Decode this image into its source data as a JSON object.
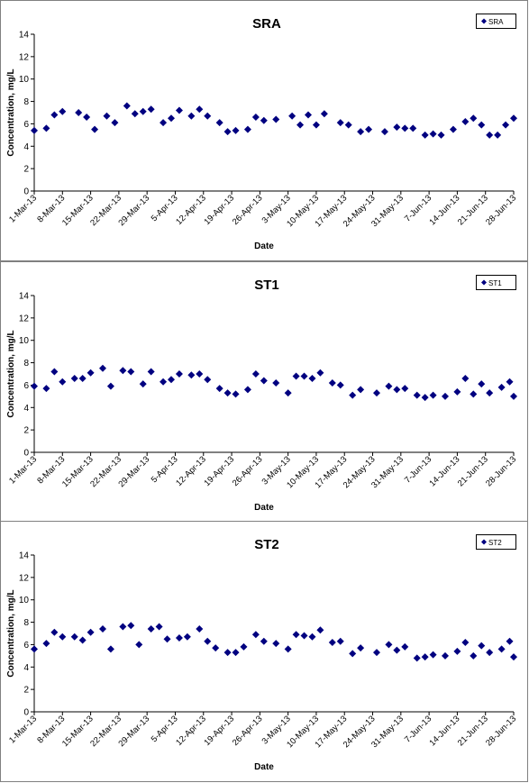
{
  "colors": {
    "marker": "#000080",
    "axis": "#000000",
    "frame": "#808080",
    "background": "#ffffff"
  },
  "chart_data": [
    {
      "type": "scatter",
      "title": "SRA",
      "xlabel": "Date",
      "ylabel": "Concentration, mg/L",
      "ylim": [
        0,
        14
      ],
      "yticks": [
        0,
        2,
        4,
        6,
        8,
        10,
        12,
        14
      ],
      "xlim": [
        "2013-03-01",
        "2013-06-28"
      ],
      "xticks": [
        "1-Mar-13",
        "8-Mar-13",
        "15-Mar-13",
        "22-Mar-13",
        "29-Mar-13",
        "5-Apr-13",
        "12-Apr-13",
        "19-Apr-13",
        "26-Apr-13",
        "3-May-13",
        "10-May-13",
        "17-May-13",
        "24-May-13",
        "31-May-13",
        "7-Jun-13",
        "14-Jun-13",
        "21-Jun-13",
        "28-Jun-13"
      ],
      "grid": false,
      "legend_position": "top-right",
      "series": [
        {
          "name": "SRA",
          "marker": "diamond",
          "x": [
            "2013-03-01",
            "2013-03-04",
            "2013-03-06",
            "2013-03-08",
            "2013-03-12",
            "2013-03-14",
            "2013-03-16",
            "2013-03-19",
            "2013-03-21",
            "2013-03-24",
            "2013-03-26",
            "2013-03-28",
            "2013-03-30",
            "2013-04-02",
            "2013-04-04",
            "2013-04-06",
            "2013-04-09",
            "2013-04-11",
            "2013-04-13",
            "2013-04-16",
            "2013-04-18",
            "2013-04-20",
            "2013-04-23",
            "2013-04-25",
            "2013-04-27",
            "2013-04-30",
            "2013-05-04",
            "2013-05-06",
            "2013-05-08",
            "2013-05-10",
            "2013-05-12",
            "2013-05-16",
            "2013-05-18",
            "2013-05-21",
            "2013-05-23",
            "2013-05-27",
            "2013-05-30",
            "2013-06-01",
            "2013-06-03",
            "2013-06-06",
            "2013-06-08",
            "2013-06-10",
            "2013-06-13",
            "2013-06-16",
            "2013-06-18",
            "2013-06-20",
            "2013-06-22",
            "2013-06-24",
            "2013-06-26",
            "2013-06-28"
          ],
          "y": [
            5.4,
            5.6,
            6.8,
            7.1,
            7.0,
            6.6,
            5.5,
            6.7,
            6.1,
            7.6,
            6.9,
            7.1,
            7.3,
            6.1,
            6.5,
            7.2,
            6.7,
            7.3,
            6.7,
            6.1,
            5.3,
            5.4,
            5.5,
            6.6,
            6.3,
            6.4,
            6.7,
            5.9,
            6.8,
            5.9,
            6.9,
            6.1,
            5.9,
            5.3,
            5.5,
            5.3,
            5.7,
            5.6,
            5.6,
            5.0,
            5.1,
            5.0,
            5.5,
            6.2,
            6.5,
            5.9,
            5.0,
            5.0,
            5.9,
            6.5
          ]
        }
      ]
    },
    {
      "type": "scatter",
      "title": "ST1",
      "xlabel": "Date",
      "ylabel": "Concentration, mg/L",
      "ylim": [
        0,
        14
      ],
      "yticks": [
        0,
        2,
        4,
        6,
        8,
        10,
        12,
        14
      ],
      "xlim": [
        "2013-03-01",
        "2013-06-28"
      ],
      "xticks": [
        "1-Mar-13",
        "8-Mar-13",
        "15-Mar-13",
        "22-Mar-13",
        "29-Mar-13",
        "5-Apr-13",
        "12-Apr-13",
        "19-Apr-13",
        "26-Apr-13",
        "3-May-13",
        "10-May-13",
        "17-May-13",
        "24-May-13",
        "31-May-13",
        "7-Jun-13",
        "14-Jun-13",
        "21-Jun-13",
        "28-Jun-13"
      ],
      "grid": false,
      "legend_position": "top-right",
      "series": [
        {
          "name": "ST1",
          "marker": "diamond",
          "x": [
            "2013-03-01",
            "2013-03-04",
            "2013-03-06",
            "2013-03-08",
            "2013-03-11",
            "2013-03-13",
            "2013-03-15",
            "2013-03-18",
            "2013-03-20",
            "2013-03-23",
            "2013-03-25",
            "2013-03-28",
            "2013-03-30",
            "2013-04-02",
            "2013-04-04",
            "2013-04-06",
            "2013-04-09",
            "2013-04-11",
            "2013-04-13",
            "2013-04-16",
            "2013-04-18",
            "2013-04-20",
            "2013-04-23",
            "2013-04-25",
            "2013-04-27",
            "2013-04-30",
            "2013-05-03",
            "2013-05-05",
            "2013-05-07",
            "2013-05-09",
            "2013-05-11",
            "2013-05-14",
            "2013-05-16",
            "2013-05-19",
            "2013-05-21",
            "2013-05-25",
            "2013-05-28",
            "2013-05-30",
            "2013-06-01",
            "2013-06-04",
            "2013-06-06",
            "2013-06-08",
            "2013-06-11",
            "2013-06-14",
            "2013-06-16",
            "2013-06-18",
            "2013-06-20",
            "2013-06-22",
            "2013-06-25",
            "2013-06-27",
            "2013-06-28"
          ],
          "y": [
            5.9,
            5.7,
            7.2,
            6.3,
            6.6,
            6.6,
            7.1,
            7.5,
            5.9,
            7.3,
            7.2,
            6.1,
            7.2,
            6.3,
            6.5,
            7.0,
            6.9,
            7.0,
            6.5,
            5.7,
            5.3,
            5.2,
            5.6,
            7.0,
            6.4,
            6.2,
            5.3,
            6.8,
            6.8,
            6.6,
            7.1,
            6.2,
            6.0,
            5.1,
            5.6,
            5.3,
            5.9,
            5.6,
            5.7,
            5.1,
            4.9,
            5.1,
            5.0,
            5.4,
            6.6,
            5.2,
            6.1,
            5.3,
            5.8,
            6.3,
            5.0
          ]
        }
      ]
    },
    {
      "type": "scatter",
      "title": "ST2",
      "xlabel": "Date",
      "ylabel": "Concentration, mg/L",
      "ylim": [
        0,
        14
      ],
      "yticks": [
        0,
        2,
        4,
        6,
        8,
        10,
        12,
        14
      ],
      "xlim": [
        "2013-03-01",
        "2013-06-28"
      ],
      "xticks": [
        "1-Mar-13",
        "8-Mar-13",
        "15-Mar-13",
        "22-Mar-13",
        "29-Mar-13",
        "5-Apr-13",
        "12-Apr-13",
        "19-Apr-13",
        "26-Apr-13",
        "3-May-13",
        "10-May-13",
        "17-May-13",
        "24-May-13",
        "31-May-13",
        "7-Jun-13",
        "14-Jun-13",
        "21-Jun-13",
        "28-Jun-13"
      ],
      "grid": false,
      "legend_position": "top-right",
      "series": [
        {
          "name": "ST2",
          "marker": "diamond",
          "x": [
            "2013-03-01",
            "2013-03-04",
            "2013-03-06",
            "2013-03-08",
            "2013-03-11",
            "2013-03-13",
            "2013-03-15",
            "2013-03-18",
            "2013-03-20",
            "2013-03-23",
            "2013-03-25",
            "2013-03-27",
            "2013-03-30",
            "2013-04-01",
            "2013-04-03",
            "2013-04-06",
            "2013-04-08",
            "2013-04-11",
            "2013-04-13",
            "2013-04-15",
            "2013-04-18",
            "2013-04-20",
            "2013-04-22",
            "2013-04-25",
            "2013-04-27",
            "2013-04-30",
            "2013-05-03",
            "2013-05-05",
            "2013-05-07",
            "2013-05-09",
            "2013-05-11",
            "2013-05-14",
            "2013-05-16",
            "2013-05-19",
            "2013-05-21",
            "2013-05-25",
            "2013-05-28",
            "2013-05-30",
            "2013-06-01",
            "2013-06-04",
            "2013-06-06",
            "2013-06-08",
            "2013-06-11",
            "2013-06-14",
            "2013-06-16",
            "2013-06-18",
            "2013-06-20",
            "2013-06-22",
            "2013-06-25",
            "2013-06-27",
            "2013-06-28"
          ],
          "y": [
            5.6,
            6.1,
            7.1,
            6.7,
            6.7,
            6.4,
            7.1,
            7.4,
            5.6,
            7.6,
            7.7,
            6.0,
            7.4,
            7.6,
            6.5,
            6.6,
            6.7,
            7.4,
            6.3,
            5.7,
            5.3,
            5.3,
            5.8,
            6.9,
            6.3,
            6.1,
            5.6,
            6.9,
            6.8,
            6.7,
            7.3,
            6.2,
            6.3,
            5.2,
            5.7,
            5.3,
            6.0,
            5.5,
            5.8,
            4.8,
            4.9,
            5.1,
            5.0,
            5.4,
            6.2,
            5.0,
            5.9,
            5.3,
            5.6,
            6.3,
            4.9
          ]
        }
      ]
    }
  ]
}
